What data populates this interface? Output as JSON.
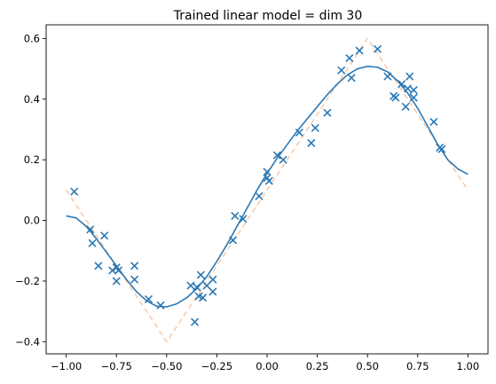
{
  "chart_data": {
    "type": "line",
    "title": "Trained linear model = dim 30",
    "xlabel": "",
    "ylabel": "",
    "xlim": [
      -1.1,
      1.1
    ],
    "ylim": [
      -0.44,
      0.645
    ],
    "xticks": [
      -1.0,
      -0.75,
      -0.5,
      -0.25,
      0.0,
      0.25,
      0.5,
      0.75,
      1.0
    ],
    "xtick_labels": [
      "−1.00",
      "−0.75",
      "−0.50",
      "−0.25",
      "0.00",
      "0.25",
      "0.50",
      "0.75",
      "1.00"
    ],
    "yticks": [
      -0.4,
      -0.2,
      0.0,
      0.2,
      0.4,
      0.6
    ],
    "ytick_labels": [
      "−0.4",
      "−0.2",
      "0.0",
      "0.2",
      "0.4",
      "0.6"
    ],
    "grid": false,
    "legend": "none",
    "series": [
      {
        "kind": "dashed-line",
        "color": "#f7c9a8",
        "x": [
          -1.0,
          -0.5,
          0.5,
          1.0
        ],
        "y": [
          0.1,
          -0.4,
          0.6,
          0.1
        ]
      },
      {
        "kind": "line",
        "color": "#2b78b4",
        "x": [
          -1.0,
          -0.95,
          -0.9,
          -0.85,
          -0.8,
          -0.75,
          -0.7,
          -0.65,
          -0.6,
          -0.55,
          -0.5,
          -0.45,
          -0.4,
          -0.35,
          -0.3,
          -0.25,
          -0.2,
          -0.15,
          -0.1,
          -0.05,
          0.0,
          0.05,
          0.1,
          0.15,
          0.2,
          0.25,
          0.3,
          0.35,
          0.4,
          0.45,
          0.5,
          0.55,
          0.6,
          0.65,
          0.7,
          0.75,
          0.8,
          0.85,
          0.9,
          0.95,
          1.0
        ],
        "y": [
          0.015,
          0.008,
          -0.02,
          -0.06,
          -0.105,
          -0.15,
          -0.195,
          -0.235,
          -0.265,
          -0.283,
          -0.285,
          -0.275,
          -0.255,
          -0.225,
          -0.185,
          -0.135,
          -0.08,
          -0.02,
          0.04,
          0.1,
          0.155,
          0.205,
          0.25,
          0.295,
          0.335,
          0.375,
          0.415,
          0.45,
          0.48,
          0.5,
          0.508,
          0.505,
          0.49,
          0.46,
          0.42,
          0.37,
          0.31,
          0.25,
          0.2,
          0.17,
          0.152
        ]
      },
      {
        "kind": "scatter",
        "marker": "x",
        "color": "#2b78b4",
        "x": [
          -0.96,
          -0.88,
          -0.87,
          -0.84,
          -0.81,
          -0.77,
          -0.75,
          -0.75,
          -0.74,
          -0.66,
          -0.66,
          -0.59,
          -0.53,
          -0.38,
          -0.36,
          -0.35,
          -0.34,
          -0.33,
          -0.32,
          -0.3,
          -0.27,
          -0.27,
          -0.17,
          -0.16,
          -0.12,
          -0.04,
          0.0,
          0.0,
          0.01,
          0.05,
          0.08,
          0.16,
          0.22,
          0.24,
          0.3,
          0.37,
          0.41,
          0.42,
          0.46,
          0.55,
          0.6,
          0.63,
          0.64,
          0.67,
          0.69,
          0.7,
          0.71,
          0.73,
          0.73,
          0.83,
          0.86,
          0.87
        ],
        "y": [
          0.095,
          -0.03,
          -0.075,
          -0.15,
          -0.05,
          -0.165,
          -0.2,
          -0.155,
          -0.165,
          -0.15,
          -0.195,
          -0.26,
          -0.28,
          -0.215,
          -0.335,
          -0.22,
          -0.25,
          -0.18,
          -0.255,
          -0.215,
          -0.195,
          -0.235,
          -0.065,
          0.015,
          0.005,
          0.08,
          0.16,
          0.14,
          0.13,
          0.215,
          0.2,
          0.29,
          0.255,
          0.305,
          0.355,
          0.495,
          0.535,
          0.47,
          0.56,
          0.565,
          0.475,
          0.41,
          0.405,
          0.45,
          0.375,
          0.435,
          0.475,
          0.405,
          0.43,
          0.325,
          0.24,
          0.235
        ]
      }
    ]
  }
}
